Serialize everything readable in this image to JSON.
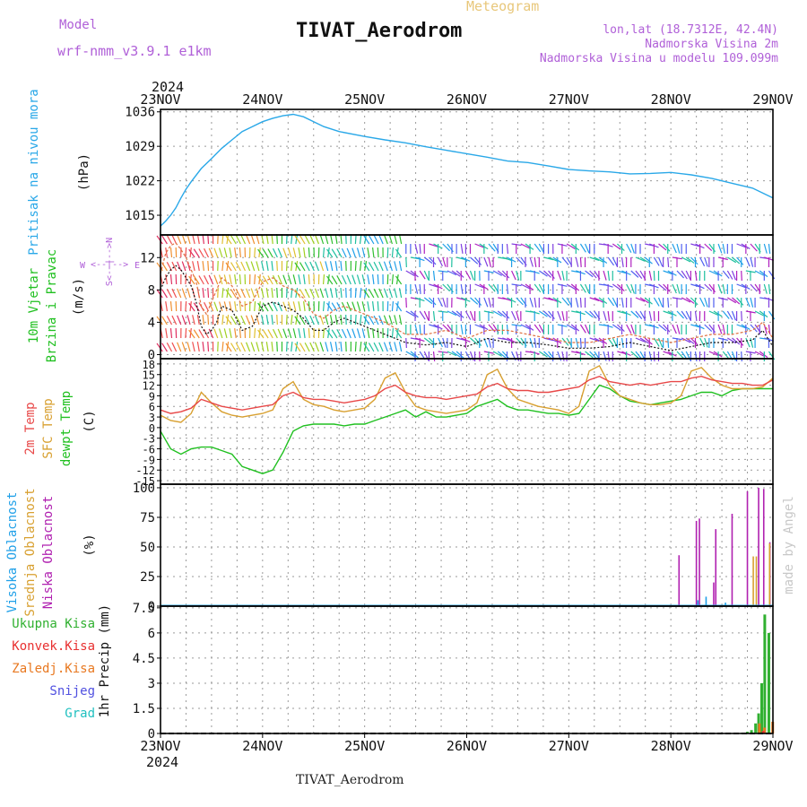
{
  "header": {
    "product": "Meteogram",
    "title": "TIVAT_Aerodrom",
    "model_label": "Model",
    "model": "wrf-nmm_v3.9.1  e1km",
    "lonlat": "lon,lat (18.7312E, 42.4N)",
    "elevation": "Nadmorska Visina 2m",
    "model_elevation": "Nadmorska Visina u modelu 109.099m",
    "footer": "TIVAT_Aerodrom",
    "credit": "made by Angel"
  },
  "time_axis": {
    "year": "2024",
    "labels": [
      "23NOV",
      "24NOV",
      "25NOV",
      "26NOV",
      "27NOV",
      "28NOV",
      "29NOV"
    ]
  },
  "colors": {
    "pressure": "#2aa8e8",
    "t2m": "#e84848",
    "sfc": "#d8a030",
    "dew": "#20c020",
    "high_cloud": "#20a0e8",
    "mid_cloud": "#d8a030",
    "low_cloud": "#b020b0",
    "total_precip": "#30b030",
    "conv_precip": "#e83030",
    "frz_precip": "#e87820",
    "snow": "#5050e0",
    "graupel": "#20c0c0",
    "wind_dir_label": "#b060d8"
  },
  "chart_data": [
    {
      "type": "line",
      "ylabel": "Pritisak na nivou mora",
      "unit": "(hPa)",
      "yticks": [
        1015,
        1022,
        1029,
        1036
      ],
      "ylim": [
        1011,
        1036.5
      ],
      "x": [
        0,
        0.05,
        0.1,
        0.15,
        0.2,
        0.25,
        0.3,
        0.4,
        0.5,
        0.6,
        0.7,
        0.8,
        0.9,
        1.0,
        1.1,
        1.2,
        1.3,
        1.4,
        1.5,
        1.6,
        1.75,
        2.0,
        2.2,
        2.4,
        2.6,
        2.8,
        3.0,
        3.2,
        3.4,
        3.6,
        3.8,
        4.0,
        4.2,
        4.4,
        4.6,
        4.8,
        5.0,
        5.2,
        5.4,
        5.6,
        5.8,
        6.0
      ],
      "series": [
        {
          "key": "pressure",
          "values": [
            1012.8,
            1013.8,
            1015.0,
            1016.5,
            1018.5,
            1020.3,
            1021.8,
            1024.5,
            1026.5,
            1028.6,
            1030.3,
            1032.0,
            1033.0,
            1034.0,
            1034.7,
            1035.2,
            1035.5,
            1035.0,
            1034.0,
            1033.0,
            1032.0,
            1031.0,
            1030.3,
            1029.7,
            1028.9,
            1028.2,
            1027.5,
            1026.8,
            1026.0,
            1025.7,
            1025.0,
            1024.3,
            1024.0,
            1023.8,
            1023.4,
            1023.5,
            1023.7,
            1023.2,
            1022.5,
            1021.5,
            1020.5,
            1018.5
          ]
        }
      ]
    },
    {
      "type": "line",
      "ylabel": "10m Vjetar Brzina i Pravac",
      "unit": "(m/s)",
      "yticks": [
        0,
        4,
        8,
        12
      ],
      "ylim": [
        -0.5,
        14.8
      ],
      "compass": {
        "n": "N",
        "s": "S",
        "e": "E",
        "w": "W"
      },
      "x": [
        0,
        0.05,
        0.1,
        0.15,
        0.2,
        0.25,
        0.3,
        0.35,
        0.4,
        0.45,
        0.5,
        0.55,
        0.6,
        0.7,
        0.8,
        0.9,
        1.0,
        1.1,
        1.2,
        1.3,
        1.4,
        1.5,
        1.6,
        1.7,
        1.8,
        1.9,
        2.0,
        2.2,
        2.4,
        2.6,
        2.8,
        3.0,
        3.2,
        3.4,
        3.6,
        3.8,
        4.0,
        4.2,
        4.4,
        4.6,
        4.8,
        5.0,
        5.2,
        5.4,
        5.6,
        5.8,
        5.9,
        6.0
      ],
      "series": [
        {
          "key": "wind_speed",
          "values": [
            8.0,
            9.5,
            10.5,
            11.0,
            10.5,
            9.5,
            8.5,
            6.5,
            3.5,
            2.5,
            3.0,
            4.0,
            6.0,
            5.5,
            3.0,
            3.5,
            6.0,
            6.5,
            6.0,
            5.5,
            4.5,
            3.0,
            3.0,
            4.0,
            4.5,
            4.0,
            3.5,
            2.5,
            1.5,
            1.2,
            1.5,
            1.0,
            2.0,
            1.5,
            1.5,
            1.2,
            0.8,
            0.8,
            1.0,
            1.5,
            1.0,
            0.5,
            1.0,
            1.5,
            1.5,
            1.8,
            3.0,
            1.0
          ]
        },
        {
          "key": "wind_gust",
          "values": [
            10.0,
            12.5,
            13.5,
            13.8,
            13.0,
            12.0,
            10.5,
            9.0,
            6.0,
            5.0,
            6.5,
            8.0,
            9.5,
            8.5,
            6.0,
            6.5,
            9.0,
            9.5,
            8.5,
            8.0,
            7.0,
            5.0,
            4.5,
            5.5,
            6.0,
            5.5,
            5.0,
            4.0,
            2.5,
            2.5,
            3.0,
            2.0,
            3.0,
            3.0,
            2.5,
            2.0,
            1.5,
            1.5,
            2.0,
            2.5,
            2.0,
            1.5,
            2.0,
            2.5,
            2.5,
            3.0,
            4.0,
            2.0
          ]
        }
      ]
    },
    {
      "type": "line",
      "ylabel_lines": [
        "2m Temp",
        "SFC Temp",
        "dewpt Temp"
      ],
      "unit": "(C)",
      "yticks": [
        -15,
        -12,
        -9,
        -6,
        -3,
        0,
        3,
        6,
        9,
        12,
        15,
        18
      ],
      "ylim": [
        -16,
        19.5
      ],
      "x": [
        0,
        0.1,
        0.2,
        0.3,
        0.4,
        0.5,
        0.6,
        0.7,
        0.8,
        0.9,
        1.0,
        1.1,
        1.2,
        1.3,
        1.4,
        1.5,
        1.6,
        1.7,
        1.8,
        1.9,
        2.0,
        2.1,
        2.2,
        2.3,
        2.4,
        2.5,
        2.6,
        2.7,
        2.8,
        2.9,
        3.0,
        3.1,
        3.2,
        3.3,
        3.4,
        3.5,
        3.6,
        3.7,
        3.8,
        3.9,
        4.0,
        4.1,
        4.2,
        4.3,
        4.4,
        4.5,
        4.6,
        4.7,
        4.8,
        4.9,
        5.0,
        5.1,
        5.2,
        5.3,
        5.4,
        5.5,
        5.6,
        5.7,
        5.8,
        5.9,
        6.0
      ],
      "series": [
        {
          "key": "t2m",
          "values": [
            5.0,
            4.0,
            4.5,
            5.5,
            8.0,
            7.0,
            6.0,
            5.5,
            5.0,
            5.5,
            6.0,
            6.5,
            9.0,
            10.0,
            8.5,
            8.0,
            8.0,
            7.5,
            7.0,
            7.5,
            8.0,
            9.0,
            11.0,
            12.0,
            10.0,
            9.0,
            8.5,
            8.5,
            8.0,
            8.5,
            9.0,
            9.5,
            11.5,
            12.5,
            11.0,
            10.5,
            10.5,
            10.0,
            10.0,
            10.5,
            11.0,
            11.5,
            13.5,
            14.5,
            13.0,
            12.5,
            12.0,
            12.5,
            12.0,
            12.5,
            13.0,
            13.0,
            14.0,
            14.5,
            13.5,
            13.0,
            12.5,
            12.5,
            12.0,
            12.0,
            13.5
          ]
        },
        {
          "key": "sfc",
          "values": [
            3.5,
            2.0,
            1.5,
            4.0,
            10.0,
            7.0,
            4.5,
            3.5,
            3.0,
            3.5,
            4.0,
            5.0,
            11.0,
            13.0,
            8.0,
            6.5,
            6.0,
            5.0,
            4.5,
            5.0,
            5.5,
            8.0,
            14.0,
            15.5,
            10.0,
            6.0,
            5.0,
            4.5,
            4.0,
            4.5,
            5.0,
            7.0,
            15.0,
            16.5,
            11.0,
            8.0,
            7.0,
            6.0,
            5.5,
            5.0,
            4.0,
            6.0,
            16.0,
            17.5,
            12.0,
            9.0,
            8.0,
            7.0,
            6.5,
            6.5,
            7.0,
            9.0,
            16.0,
            17.0,
            14.0,
            12.0,
            11.0,
            11.0,
            11.0,
            11.5,
            14.0
          ]
        },
        {
          "key": "dew",
          "values": [
            -1.0,
            -6.0,
            -7.5,
            -6.0,
            -5.5,
            -5.5,
            -6.5,
            -7.5,
            -11.0,
            -12.0,
            -13.0,
            -12.0,
            -7.0,
            -1.0,
            0.5,
            1.0,
            1.0,
            1.0,
            0.5,
            1.0,
            1.0,
            2.0,
            3.0,
            4.0,
            5.0,
            3.0,
            4.5,
            3.0,
            3.0,
            3.5,
            4.0,
            6.0,
            7.0,
            8.0,
            6.0,
            5.0,
            5.0,
            4.5,
            4.0,
            4.0,
            3.5,
            4.0,
            8.0,
            12.0,
            11.0,
            9.0,
            7.5,
            7.0,
            6.5,
            7.0,
            7.5,
            8.0,
            9.0,
            10.0,
            10.0,
            9.0,
            10.5,
            11.0,
            11.0,
            11.0,
            11.0
          ]
        }
      ]
    },
    {
      "type": "bar",
      "ylabel_lines": [
        "Visoka Oblacnost",
        "Srednja Oblacnost",
        "Niska Oblacnost"
      ],
      "unit": "(%)",
      "yticks": [
        0,
        25,
        50,
        75,
        100
      ],
      "ylim": [
        0,
        103
      ],
      "series": [
        {
          "key": "low_cloud",
          "bars": [
            [
              5.08,
              43
            ],
            [
              5.25,
              72
            ],
            [
              5.28,
              74
            ],
            [
              5.42,
              20
            ],
            [
              5.44,
              65
            ],
            [
              5.6,
              78
            ],
            [
              5.75,
              97
            ],
            [
              5.86,
              100
            ],
            [
              5.91,
              99
            ],
            [
              5.97,
              54
            ]
          ]
        },
        {
          "key": "mid_cloud",
          "bars": [
            [
              5.79,
              42
            ],
            [
              5.82,
              42
            ],
            [
              5.95,
              53
            ]
          ]
        },
        {
          "key": "high_cloud",
          "bars": [
            [
              5.23,
              5
            ],
            [
              5.31,
              8
            ],
            [
              5.5,
              3
            ]
          ]
        }
      ]
    },
    {
      "type": "bar",
      "legend": [
        "Ukupna Kisa",
        "Konvek.Kisa",
        "Zaledj.Kisa",
        "Snijeg",
        "Grad"
      ],
      "ylabel": "1hr Precip",
      "unit": "(mm)",
      "yticks": [
        0,
        1.5,
        3,
        4.5,
        6,
        7.5
      ],
      "ylim": [
        0,
        7.6
      ],
      "series": [
        {
          "key": "total_precip",
          "bars": [
            [
              5.35,
              0.05
            ],
            [
              5.55,
              0.05
            ],
            [
              5.7,
              0.05
            ],
            [
              5.75,
              0.1
            ],
            [
              5.79,
              0.2
            ],
            [
              5.83,
              0.6
            ],
            [
              5.86,
              1.2
            ],
            [
              5.89,
              3.0
            ],
            [
              5.92,
              7.1
            ],
            [
              5.96,
              6.0
            ]
          ]
        },
        {
          "key": "frz_precip",
          "bars": [
            [
              5.85,
              0.6
            ],
            [
              5.9,
              0.35
            ],
            [
              5.98,
              0.7
            ]
          ]
        },
        {
          "key": "conv_precip",
          "bars": [
            [
              5.87,
              0.15
            ]
          ]
        }
      ]
    }
  ]
}
